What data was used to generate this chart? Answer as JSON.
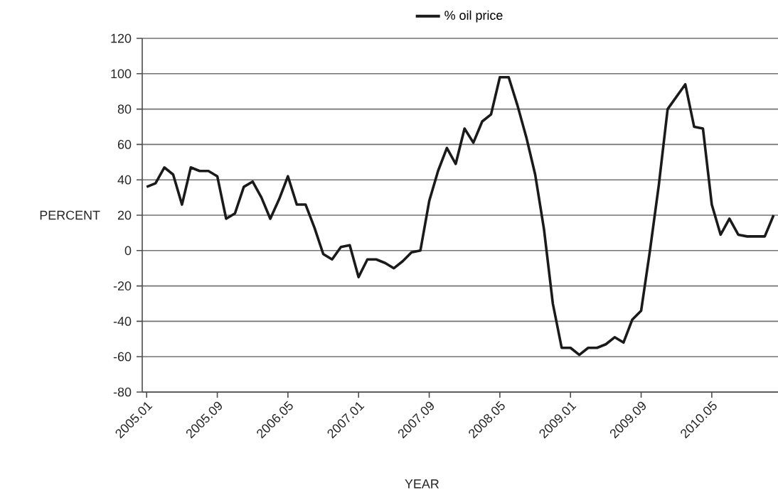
{
  "chart_data": {
    "type": "line",
    "xlabel": "YEAR",
    "ylabel": "PERCENT",
    "categories": [
      "2005.01",
      null,
      null,
      null,
      null,
      null,
      null,
      null,
      "2005.09",
      null,
      null,
      null,
      null,
      null,
      null,
      null,
      "2006.05",
      null,
      null,
      null,
      null,
      null,
      null,
      null,
      "2007.01",
      null,
      null,
      null,
      null,
      null,
      null,
      null,
      "2007.09",
      null,
      null,
      null,
      null,
      null,
      null,
      null,
      "2008.05",
      null,
      null,
      null,
      null,
      null,
      null,
      null,
      "2009.01",
      null,
      null,
      null,
      null,
      null,
      null,
      null,
      "2009.09",
      null,
      null,
      null,
      null,
      null,
      null,
      null,
      "2010.05",
      null,
      null,
      null,
      null,
      null,
      null,
      null
    ],
    "series": [
      {
        "name": "% oil price",
        "color": "#1a1a1a",
        "values": [
          36,
          38,
          47,
          43,
          26,
          47,
          45,
          45,
          42,
          18,
          21,
          36,
          39,
          30,
          18,
          29,
          42,
          26,
          26,
          13,
          -2,
          -5,
          2,
          3,
          -15,
          -5,
          -5,
          -7,
          -10,
          -6,
          -1,
          0,
          28,
          45,
          58,
          49,
          69,
          61,
          73,
          77,
          98,
          98,
          82,
          64,
          43,
          12,
          -30,
          -55,
          -55,
          -59,
          -55,
          -55,
          -53,
          -49,
          -52,
          -39,
          -34,
          0,
          37,
          80,
          87,
          94,
          70,
          69,
          26,
          9,
          18,
          9,
          8,
          8,
          8,
          20
        ]
      }
    ],
    "ylim": [
      -80,
      120
    ],
    "yticks": [
      -80,
      -60,
      -40,
      -20,
      0,
      20,
      40,
      60,
      80,
      100,
      120
    ],
    "grid": "y",
    "legend": "top",
    "marker": "none",
    "line_style": "solid"
  }
}
